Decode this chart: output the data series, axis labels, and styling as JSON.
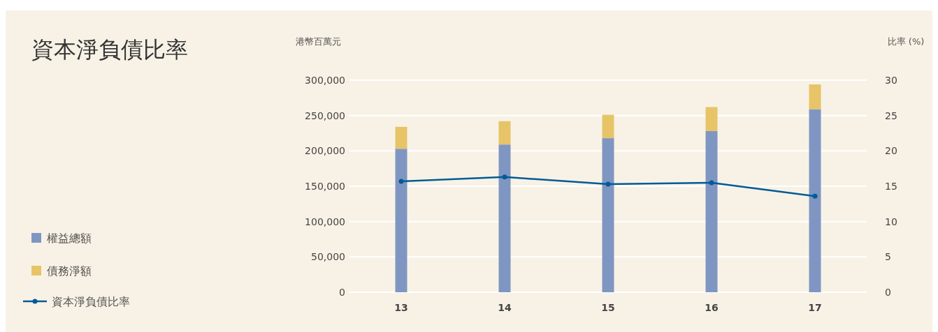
{
  "chart_data": {
    "type": "bar",
    "title": "資本淨負債比率",
    "ylabel": "港幣百萬元",
    "y2label": "比率 (%)",
    "categories": [
      "13",
      "14",
      "15",
      "16",
      "17"
    ],
    "stacked": true,
    "series": [
      {
        "name": "權益總額",
        "color": "#7f96c2",
        "values": [
          203000,
          209000,
          218000,
          228000,
          259000
        ]
      },
      {
        "name": "債務淨額",
        "color": "#e6c467",
        "values": [
          31000,
          33000,
          33000,
          34000,
          35000
        ]
      },
      {
        "name": "資本淨負債比率",
        "type": "line",
        "axis": "y2",
        "color": "#005b96",
        "marker": "circle",
        "values": [
          15.7,
          16.3,
          15.3,
          15.5,
          13.6
        ]
      }
    ],
    "ylim": [
      0,
      300000
    ],
    "yticks": [
      {
        "value": 0,
        "label": "0"
      },
      {
        "value": 50000,
        "label": "50,000"
      },
      {
        "value": 100000,
        "label": "100,000"
      },
      {
        "value": 150000,
        "label": "150,000"
      },
      {
        "value": 200000,
        "label": "200,000"
      },
      {
        "value": 250000,
        "label": "250,000"
      },
      {
        "value": 300000,
        "label": "300,000"
      }
    ],
    "y2lim": [
      0,
      30
    ],
    "y2ticks": [
      0,
      5,
      10,
      15,
      20,
      25,
      30
    ],
    "grid": "y",
    "legend": "left"
  }
}
